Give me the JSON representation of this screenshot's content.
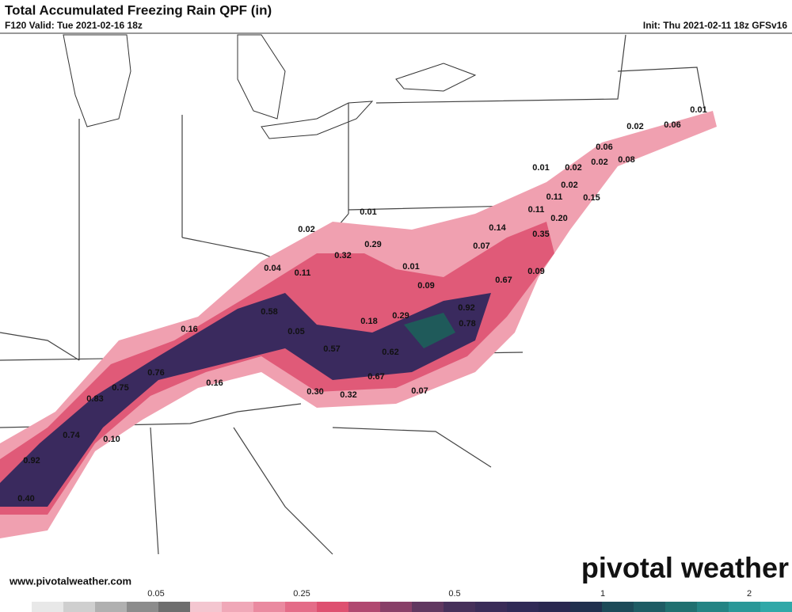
{
  "header": {
    "title": "Total Accumulated Freezing Rain QPF (in)",
    "valid": "F120 Valid: Tue 2021-02-16 18z",
    "init": "Init: Thu 2021-02-11 18z GFSv16"
  },
  "map": {
    "labels": [
      "0.01",
      "0.02",
      "0.06",
      "0.06",
      "0.02",
      "0.08",
      "0.01",
      "0.02",
      "0.02",
      "0.15",
      "0.11",
      "0.01",
      "0.11",
      "0.20",
      "0.02",
      "0.14",
      "0.35",
      "0.29",
      "0.07",
      "0.32",
      "0.01",
      "0.04",
      "0.11",
      "0.09",
      "0.67",
      "0.09",
      "0.58",
      "0.92",
      "0.29",
      "0.18",
      "0.78",
      "0.16",
      "0.05",
      "0.57",
      "0.62",
      "0.76",
      "0.67",
      "0.16",
      "0.75",
      "0.30",
      "0.32",
      "0.07",
      "0.83",
      "0.74",
      "0.10",
      "0.92",
      "0.40"
    ]
  },
  "footer": {
    "website": "www.pivotalweather.com",
    "logo": "pivotal weather"
  },
  "colorbar": {
    "labels": [
      "0.05",
      "0.25",
      "0.5",
      "1",
      "2"
    ]
  }
}
